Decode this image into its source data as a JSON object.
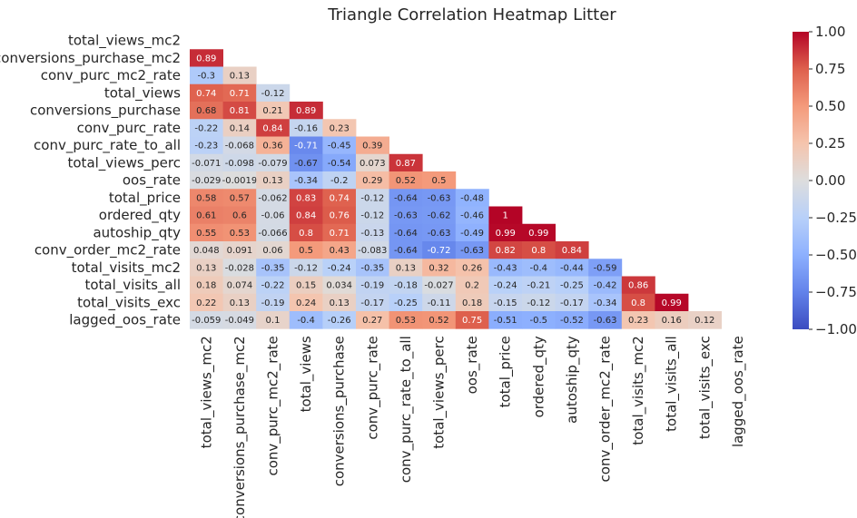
{
  "chart_data": {
    "type": "heatmap",
    "title": "Triangle Correlation Heatmap Litter",
    "labels": [
      "total_views_mc2",
      "conversions_purchase_mc2",
      "conv_purc_mc2_rate",
      "total_views",
      "conversions_purchase",
      "conv_purc_rate",
      "conv_purc_rate_to_all",
      "total_views_perc",
      "oos_rate",
      "total_price",
      "ordered_qty",
      "autoship_qty",
      "conv_order_mc2_rate",
      "total_visits_mc2",
      "total_visits_all",
      "total_visits_exc",
      "lagged_oos_rate"
    ],
    "values": [
      [],
      [
        "0.89"
      ],
      [
        "-0.3",
        "0.13"
      ],
      [
        "0.74",
        "0.71",
        "-0.12"
      ],
      [
        "0.68",
        "0.81",
        "0.21",
        "0.89"
      ],
      [
        "-0.22",
        "0.14",
        "0.84",
        "-0.16",
        "0.23"
      ],
      [
        "-0.23",
        "-0.068",
        "0.36",
        "-0.71",
        "-0.45",
        "0.39"
      ],
      [
        "-0.071",
        "-0.098",
        "-0.079",
        "-0.67",
        "-0.54",
        "0.073",
        "0.87"
      ],
      [
        "-0.029",
        "-0.0019",
        "0.13",
        "-0.34",
        "-0.2",
        "0.29",
        "0.52",
        "0.5"
      ],
      [
        "0.58",
        "0.57",
        "-0.062",
        "0.83",
        "0.74",
        "-0.12",
        "-0.64",
        "-0.63",
        "-0.48"
      ],
      [
        "0.61",
        "0.6",
        "-0.06",
        "0.84",
        "0.76",
        "-0.12",
        "-0.63",
        "-0.62",
        "-0.46",
        "1"
      ],
      [
        "0.55",
        "0.53",
        "-0.066",
        "0.8",
        "0.71",
        "-0.13",
        "-0.64",
        "-0.63",
        "-0.49",
        "0.99",
        "0.99"
      ],
      [
        "0.048",
        "0.091",
        "0.06",
        "0.5",
        "0.43",
        "-0.083",
        "-0.64",
        "-0.72",
        "-0.63",
        "0.82",
        "0.8",
        "0.84"
      ],
      [
        "0.13",
        "-0.028",
        "-0.35",
        "-0.12",
        "-0.24",
        "-0.35",
        "0.13",
        "0.32",
        "0.26",
        "-0.43",
        "-0.4",
        "-0.44",
        "-0.59"
      ],
      [
        "0.18",
        "0.074",
        "-0.22",
        "0.15",
        "0.034",
        "-0.19",
        "-0.18",
        "-0.027",
        "0.2",
        "-0.24",
        "-0.21",
        "-0.25",
        "-0.42",
        "0.86"
      ],
      [
        "0.22",
        "0.13",
        "-0.19",
        "0.24",
        "0.13",
        "-0.17",
        "-0.25",
        "-0.11",
        "0.18",
        "-0.15",
        "-0.12",
        "-0.17",
        "-0.34",
        "0.8",
        "0.99"
      ],
      [
        "-0.059",
        "-0.049",
        "0.1",
        "-0.4",
        "-0.26",
        "0.27",
        "0.53",
        "0.52",
        "0.75",
        "-0.51",
        "-0.5",
        "-0.52",
        "-0.63",
        "0.23",
        "0.16",
        "0.12"
      ]
    ],
    "colorbar": {
      "range": [
        -1.0,
        1.0
      ],
      "ticks": [
        "1.00",
        "0.75",
        "0.50",
        "0.25",
        "0.00",
        "−0.25",
        "−0.50",
        "−0.75",
        "−1.00"
      ],
      "colormap": "coolwarm"
    },
    "mask": "upper-triangle-including-diagonal",
    "legend_position": "right"
  }
}
